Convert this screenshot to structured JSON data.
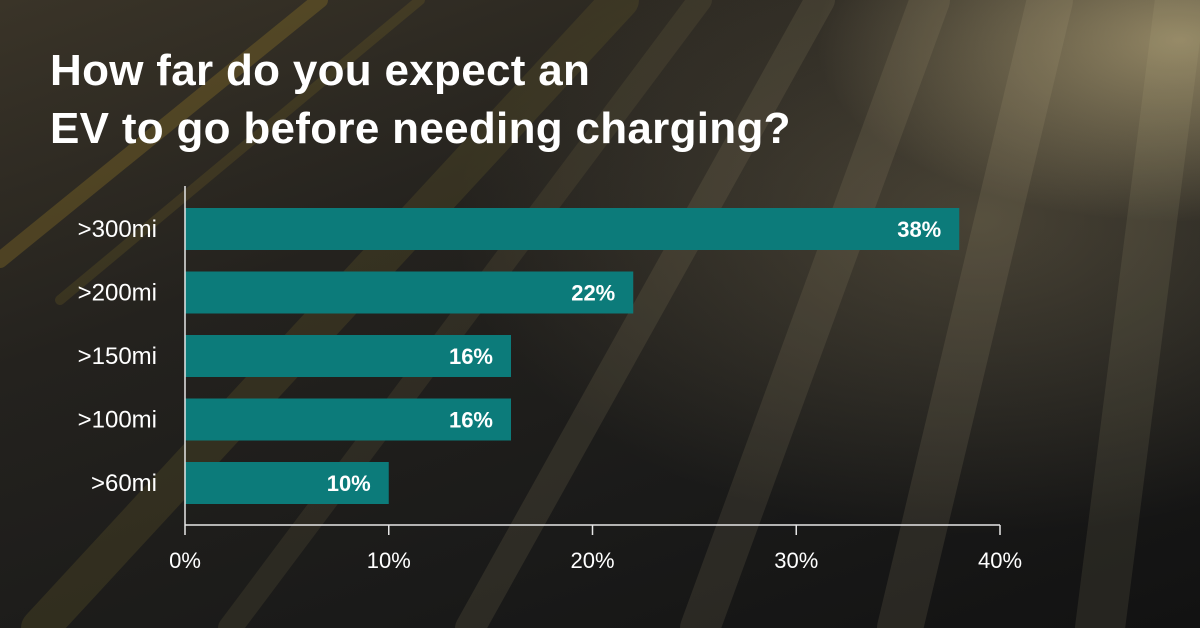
{
  "chart_data": {
    "type": "bar",
    "orientation": "horizontal",
    "title": "How far do you expect an EV to go before needing charging?",
    "title_lines": [
      "How far do you expect an",
      "EV to go before needing charging?"
    ],
    "categories": [
      ">300mi",
      ">200mi",
      ">150mi",
      ">100mi",
      ">60mi"
    ],
    "values": [
      38,
      22,
      16,
      16,
      10
    ],
    "value_labels": [
      "38%",
      "22%",
      "16%",
      "16%",
      "10%"
    ],
    "xlim": [
      0,
      40
    ],
    "x_ticks": [
      0,
      10,
      20,
      30,
      40
    ],
    "x_tick_labels": [
      "0%",
      "10%",
      "20%",
      "30%",
      "40%"
    ],
    "xlabel": "",
    "ylabel": "",
    "grid": false,
    "bar_color": "#0c7b7a",
    "axis_color": "#e6e6e6",
    "text_color": "#ffffff"
  }
}
